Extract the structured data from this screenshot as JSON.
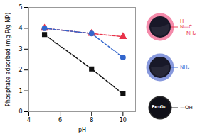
{
  "chart_data": {
    "type": "line",
    "xlabel": "pH",
    "ylabel": "Phosphate adsorbed (mg P/g NP)",
    "x": [
      5,
      8,
      10
    ],
    "xlim": [
      4,
      10.8
    ],
    "ylim": [
      0,
      5
    ],
    "xticks": [
      4,
      6,
      8,
      10
    ],
    "yticks": [
      0,
      1,
      2,
      3,
      4,
      5
    ],
    "series": [
      {
        "color": "#e8334a",
        "marker": "triangle",
        "line_style": "dashed",
        "values": [
          4.0,
          3.75,
          3.6
        ]
      },
      {
        "color": "#3366cc",
        "marker": "circle",
        "line_style": "dashed",
        "values": [
          4.0,
          3.75,
          2.6
        ]
      },
      {
        "color": "#111111",
        "marker": "square",
        "line_style": "dashed",
        "values": [
          3.7,
          2.05,
          0.85
        ]
      }
    ],
    "annotations": [
      {
        "text": "H\nN—C\n    NH₂",
        "color": "#e8334a"
      },
      {
        "text": "NH₂",
        "color": "#3366cc"
      },
      {
        "text": "Fe₃O₄",
        "color": "white"
      },
      {
        "text": "—OH",
        "color": "#111111"
      }
    ]
  }
}
